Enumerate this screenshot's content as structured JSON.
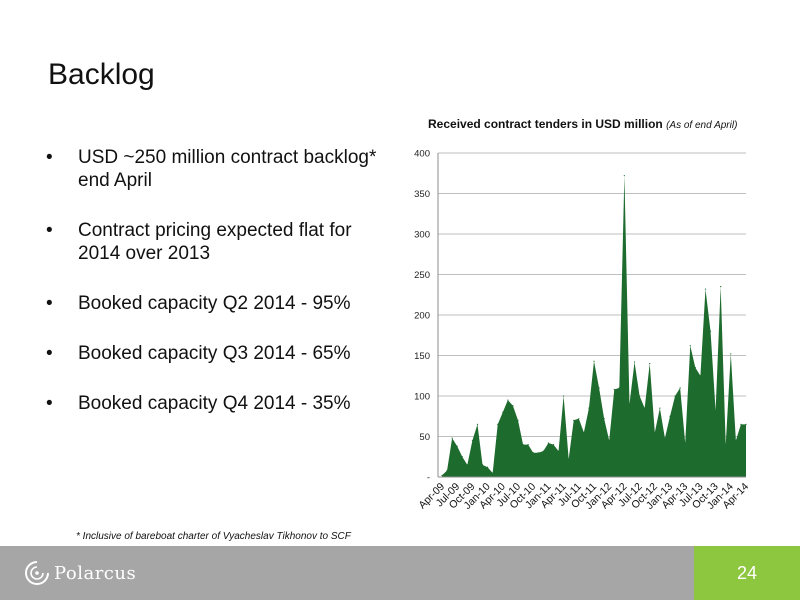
{
  "slide": {
    "title": "Backlog",
    "bullets": [
      "USD ~250 million contract backlog* end April",
      "Contract pricing expected flat for 2014 over 2013",
      "Booked capacity Q2 2014 - 95%",
      "Booked capacity Q3 2014 - 65%",
      "Booked capacity Q4 2014 - 35%"
    ],
    "bullet_symbol": "•",
    "footnote": "* Inclusive of bareboat charter of Vyacheslav Tikhonov to SCF"
  },
  "footer": {
    "logo_text": "Polarcus",
    "logo_icon": "polarcus-swirl-icon",
    "page_number": "24",
    "bar_color": "#a6a6a6",
    "accent_color": "#8dc63f"
  },
  "chart_data": {
    "type": "area",
    "title": "Received contract tenders in USD million",
    "subtitle": "(As of end April)",
    "xlabel": "",
    "ylabel": "",
    "ylim": [
      0,
      400
    ],
    "yticks": [
      "-",
      "50",
      "100",
      "150",
      "200",
      "250",
      "300",
      "350",
      "400"
    ],
    "grid": true,
    "legend": "none",
    "fill_color": "#1e6b2e",
    "x_tick_labels": [
      "Apr-09",
      "Jul-09",
      "Oct-09",
      "Jan-10",
      "Apr-10",
      "Jul-10",
      "Oct-10",
      "Jan-11",
      "Apr-11",
      "Jul-11",
      "Oct-11",
      "Jan-12",
      "Apr-12",
      "Jul-12",
      "Oct-12",
      "Jan-13",
      "Apr-13",
      "Jul-13",
      "Oct-13",
      "Jan-14",
      "Apr-14"
    ],
    "x": [
      "Apr-09",
      "May-09",
      "Jun-09",
      "Jul-09",
      "Aug-09",
      "Sep-09",
      "Oct-09",
      "Nov-09",
      "Dec-09",
      "Jan-10",
      "Feb-10",
      "Mar-10",
      "Apr-10",
      "May-10",
      "Jun-10",
      "Jul-10",
      "Aug-10",
      "Sep-10",
      "Oct-10",
      "Nov-10",
      "Dec-10",
      "Jan-11",
      "Feb-11",
      "Mar-11",
      "Apr-11",
      "May-11",
      "Jun-11",
      "Jul-11",
      "Aug-11",
      "Sep-11",
      "Oct-11",
      "Nov-11",
      "Dec-11",
      "Jan-12",
      "Feb-12",
      "Mar-12",
      "Apr-12",
      "May-12",
      "Jun-12",
      "Jul-12",
      "Aug-12",
      "Sep-12",
      "Oct-12",
      "Nov-12",
      "Dec-12",
      "Jan-13",
      "Feb-13",
      "Mar-13",
      "Apr-13",
      "May-13",
      "Jun-13",
      "Jul-13",
      "Aug-13",
      "Sep-13",
      "Oct-13",
      "Nov-13",
      "Dec-13",
      "Jan-14",
      "Feb-14",
      "Mar-14",
      "Apr-14"
    ],
    "values": [
      2,
      8,
      48,
      38,
      25,
      15,
      45,
      65,
      15,
      12,
      5,
      65,
      80,
      95,
      88,
      70,
      40,
      40,
      30,
      30,
      32,
      42,
      40,
      32,
      100,
      22,
      70,
      72,
      55,
      85,
      143,
      110,
      72,
      45,
      108,
      110,
      372,
      90,
      142,
      100,
      85,
      140,
      55,
      85,
      48,
      75,
      100,
      110,
      42,
      162,
      135,
      125,
      232,
      180,
      82,
      235,
      40,
      152,
      45,
      65,
      65
    ]
  }
}
